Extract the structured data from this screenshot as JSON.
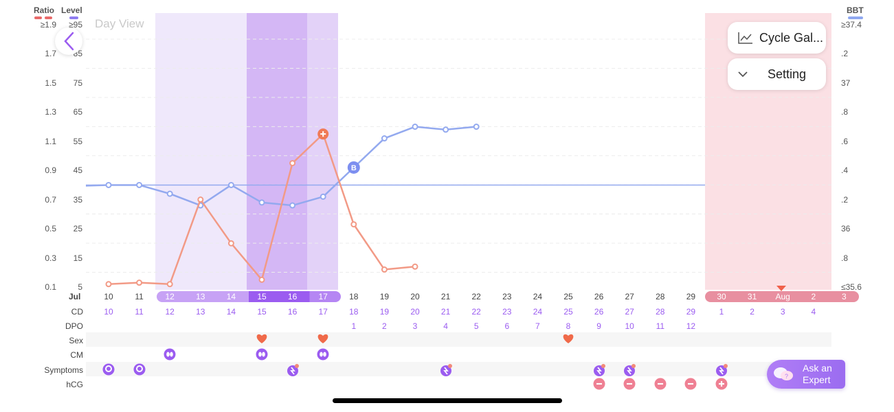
{
  "header": {
    "ratio_label": "Ratio",
    "level_label": "Level",
    "bbt_label": "BBT",
    "view_label": "Day View"
  },
  "y_axis_ratio": [
    "≥1.9",
    "1.7",
    "1.5",
    "1.3",
    "1.1",
    "0.9",
    "0.7",
    "0.5",
    "0.3",
    "0.1"
  ],
  "y_axis_level": [
    "≥95",
    "85",
    "75",
    "65",
    "55",
    "45",
    "35",
    "25",
    "15",
    "5"
  ],
  "y_axis_bbt": [
    "≥37.4",
    ".2",
    "37",
    ".8",
    ".6",
    ".4",
    ".2",
    "36",
    ".8",
    "≤35.6"
  ],
  "buttons": {
    "cycle_gallery": "Cycle Gal...",
    "setting": "Setting",
    "ask_expert_line1": "Ask an",
    "ask_expert_line2": "Expert"
  },
  "dates": {
    "month_label": "Jul",
    "days": [
      "10",
      "11",
      "12",
      "13",
      "14",
      "15",
      "16",
      "17",
      "18",
      "19",
      "20",
      "21",
      "22",
      "23",
      "24",
      "25",
      "26",
      "27",
      "28",
      "29",
      "30",
      "31",
      "Aug",
      "2",
      "3"
    ]
  },
  "row_labels": {
    "cd": "CD",
    "dpo": "DPO",
    "sex": "Sex",
    "cm": "CM",
    "symptoms": "Symptoms",
    "hcg": "hCG"
  },
  "cd_values": [
    "10",
    "11",
    "12",
    "13",
    "14",
    "15",
    "16",
    "17",
    "18",
    "19",
    "20",
    "21",
    "22",
    "23",
    "24",
    "25",
    "26",
    "27",
    "28",
    "29",
    "1",
    "2",
    "3",
    "4"
  ],
  "dpo_values": [
    "1",
    "2",
    "3",
    "4",
    "5",
    "6",
    "7",
    "8",
    "9",
    "10",
    "11",
    "12"
  ],
  "marker_b": "B",
  "colors": {
    "ratio_line": "#f29a86",
    "level_line": "#93a9ef",
    "fertile_light": "#efe8fb",
    "fertile_mid": "#e3d2f8",
    "fertile_peak": "#d4b7f5",
    "period": "#fbe0e4",
    "accent": "#9b5cf0"
  },
  "chart_data": {
    "type": "line",
    "x": [
      "10",
      "11",
      "12",
      "13",
      "14",
      "15",
      "16",
      "17",
      "18",
      "19",
      "20",
      "21",
      "22"
    ],
    "series": [
      {
        "values": [
          0.12,
          0.13,
          0.12,
          0.7,
          0.4,
          0.15,
          0.95,
          1.15,
          0.53,
          0.22,
          0.24,
          null,
          null
        ]
      },
      {
        "values": [
          40,
          40,
          37,
          33,
          40,
          34,
          33,
          36,
          46,
          56,
          60,
          59,
          60
        ]
      }
    ],
    "threshold_level": 40,
    "ylim_ratio": [
      0.1,
      1.9
    ],
    "ylim_level": [
      5,
      95
    ]
  }
}
